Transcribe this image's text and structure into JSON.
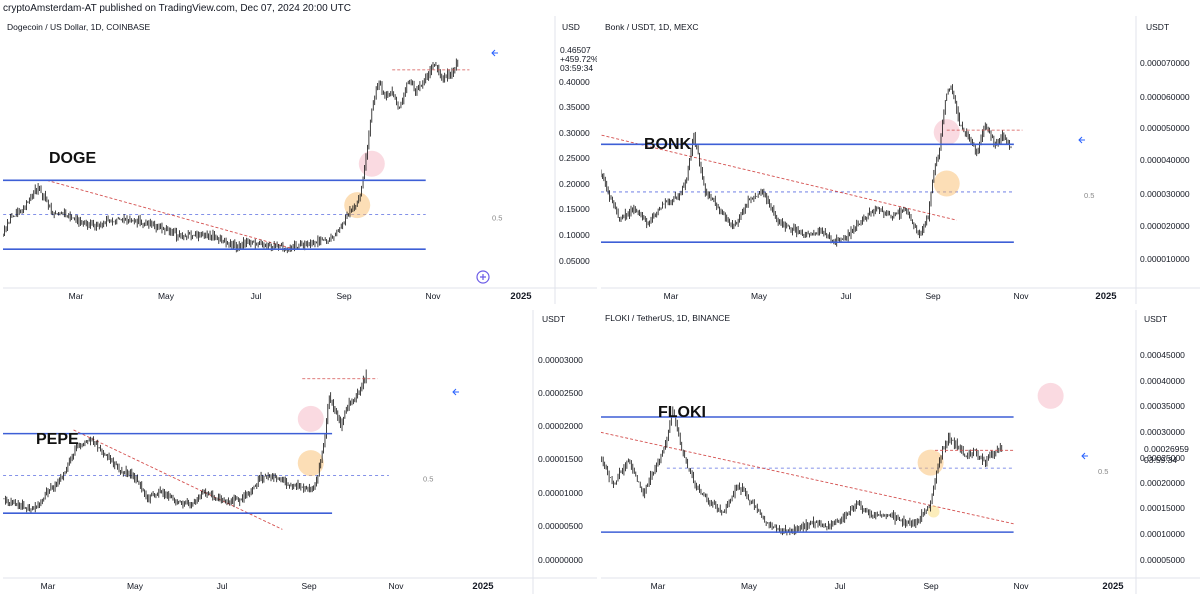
{
  "header": {
    "text": "cryptoAmsterdam-AT published on TradingView.com, Dec 07, 2024 20:00 UTC"
  },
  "chart_data": [
    {
      "type": "line",
      "symbol": "Dogecoin / US Dollar, 1D, COINBASE",
      "label": "DOGE",
      "currency": "USD",
      "x_labels": [
        "Mar",
        "May",
        "Jul",
        "Sep",
        "Nov",
        "2025"
      ],
      "y_ticks": [
        "0.40000",
        "0.35000",
        "0.30000",
        "0.25000",
        "0.20000",
        "0.15000",
        "0.10000",
        "0.05000"
      ],
      "current": [
        "0.46507",
        "+459.72%",
        "03:59:34"
      ],
      "fib_label": "0.5",
      "ylim": [
        0.02,
        0.53
      ],
      "start_day": -60,
      "end_day": 340,
      "x": [
        -60,
        -20,
        0,
        4,
        14,
        24,
        34,
        44,
        54,
        64,
        74,
        84,
        94,
        104,
        114,
        124,
        134,
        144,
        154,
        162,
        170,
        180,
        190,
        200,
        205,
        210,
        220,
        228,
        236,
        242,
        248,
        252,
        256,
        260,
        264,
        268,
        272,
        276,
        282,
        288,
        294,
        300,
        306,
        312,
        318,
        322
      ],
      "values": [
        0.0835,
        0.0835,
        0.0835,
        0.09,
        0.15,
        0.175,
        0.215,
        0.165,
        0.16,
        0.145,
        0.14,
        0.153,
        0.15,
        0.15,
        0.138,
        0.13,
        0.12,
        0.122,
        0.12,
        0.11,
        0.1,
        0.11,
        0.105,
        0.1,
        0.092,
        0.1,
        0.105,
        0.11,
        0.118,
        0.14,
        0.168,
        0.18,
        0.21,
        0.3,
        0.38,
        0.42,
        0.385,
        0.4,
        0.37,
        0.42,
        0.4,
        0.425,
        0.45,
        0.42,
        0.44,
        0.455
      ],
      "resistance": 0.228,
      "support": 0.095,
      "fib": 0.162,
      "fib_dash_from": -60,
      "trend": [
        [
          40,
          0.228
        ],
        [
          210,
          0.095
        ]
      ],
      "circles": [
        {
          "x": 263,
          "y": 0.26,
          "color": "pink"
        },
        {
          "x": 253,
          "y": 0.18,
          "color": "orange"
        }
      ]
    },
    {
      "type": "line",
      "symbol": "Bonk / USDT, 1D, MEXC",
      "label": "BONK",
      "currency": "USDT",
      "x_labels": [
        "Mar",
        "May",
        "Jul",
        "Sep",
        "Nov",
        "2025"
      ],
      "y_ticks": [
        "0.000070000",
        "0.000060000",
        "0.000050000",
        "0.000040000",
        "0.000030000",
        "0.000020000",
        "0.000010000"
      ],
      "fib_label": "0.5",
      "ylim": [
        3.5e-06,
        7.55e-05
      ],
      "start_day": -60,
      "end_day": 340,
      "x": [
        -60,
        -30,
        -10,
        0,
        4,
        8,
        14,
        24,
        34,
        44,
        54,
        64,
        70,
        76,
        84,
        94,
        104,
        114,
        124,
        134,
        144,
        154,
        164,
        174,
        184,
        194,
        204,
        214,
        224,
        234,
        240,
        244,
        248,
        252,
        256,
        262,
        268,
        274,
        280,
        286,
        292,
        298
      ],
      "values": [
        1.1e-05,
        9.5e-06,
        1.2e-05,
        1.6e-05,
        2.2e-05,
        3.8e-05,
        3.2e-05,
        2.2e-05,
        2.5e-05,
        2.1e-05,
        2.6e-05,
        2.8e-05,
        3.2e-05,
        4.5e-05,
        3e-05,
        2.5e-05,
        2e-05,
        2.7e-05,
        3e-05,
        2.2e-05,
        2e-05,
        1.8e-05,
        1.9e-05,
        1.6e-05,
        1.8e-05,
        2.2e-05,
        2.5e-05,
        2.3e-05,
        2.5e-05,
        1.8e-05,
        2.3e-05,
        3.5e-05,
        4.2e-05,
        5.5e-05,
        5.9e-05,
        4.8e-05,
        4.5e-05,
        4e-05,
        4.8e-05,
        4.3e-05,
        4.5e-05,
        4.2e-05
      ],
      "resistance": 4.27e-05,
      "support": 1.6e-05,
      "fib": 2.97e-05,
      "fib_dash_from": -10,
      "trend": [
        [
          8,
          4.55e-05
        ],
        [
          260,
          2.2e-05
        ]
      ],
      "circles": [
        {
          "x": 253,
          "y": 4.6e-05,
          "color": "pink"
        },
        {
          "x": 253,
          "y": 3.2e-05,
          "color": "orange"
        }
      ]
    },
    {
      "type": "line",
      "symbol": "",
      "label": "PEPE",
      "currency": "USDT",
      "x_labels": [
        "Mar",
        "May",
        "Jul",
        "Sep",
        "Nov",
        "2025"
      ],
      "y_ticks": [
        "0.00003000",
        "0.00002500",
        "0.00002000",
        "0.00001500",
        "0.00001000",
        "0.00000500",
        "0.00000000"
      ],
      "fib_label": "0.5",
      "ylim": [
        -2.8e-06,
        3.25e-05
      ],
      "start_day": -60,
      "end_day": 340,
      "x": [
        -60,
        -40,
        -20,
        -10,
        0,
        4,
        10,
        20,
        30,
        40,
        50,
        60,
        70,
        80,
        90,
        100,
        110,
        120,
        130,
        140,
        150,
        160,
        170,
        180,
        190,
        200,
        210,
        220,
        230,
        240,
        246,
        250,
        254,
        258,
        262,
        266,
        272,
        278,
        284
      ],
      "values": [
        5.5e-07,
        8e-07,
        1.5e-06,
        2e-06,
        4e-06,
        7.5e-06,
        1.1e-05,
        8e-06,
        8e-06,
        7e-06,
        6.5e-06,
        9e-06,
        1.1e-05,
        1.5e-05,
        1.6e-05,
        1.4e-05,
        1.2e-05,
        1.1e-05,
        8e-06,
        9e-06,
        7.5e-06,
        7e-06,
        9e-06,
        7.8e-06,
        7.5e-06,
        8.5e-06,
        1.1e-05,
        1.1e-05,
        1e-05,
        9.5e-06,
        9e-06,
        1.1e-05,
        1.5e-05,
        2.2e-05,
        2e-05,
        1.8e-05,
        2.1e-05,
        2.2e-05,
        2.5e-05
      ],
      "resistance": 1.68e-05,
      "support": 6e-06,
      "fib": 1.11e-05,
      "fib_dash_from": -35,
      "trend": [
        [
          78,
          1.73e-05
        ],
        [
          225,
          3.8e-06
        ]
      ],
      "circles": [
        {
          "x": 245,
          "y": 1.88e-05,
          "color": "pink"
        },
        {
          "x": 245,
          "y": 1.28e-05,
          "color": "orange"
        }
      ]
    },
    {
      "type": "line",
      "symbol": "FLOKI / TetherUS, 1D, BINANCE",
      "label": "FLOKI",
      "currency": "USDT",
      "x_labels": [
        "Mar",
        "May",
        "Jul",
        "Sep",
        "Nov",
        "2025"
      ],
      "y_ticks": [
        "0.00045000",
        "0.00040000",
        "0.00035000",
        "0.00030000",
        "0.00025000",
        "0.00020000",
        "0.00015000",
        "0.00010000",
        "0.00005000"
      ],
      "current": [
        "0.00026959",
        "03:59:34"
      ],
      "fib_label": "0.5",
      "ylim": [
        2.75e-05,
        0.000495
      ],
      "start_day": -60,
      "end_day": 340,
      "x": [
        -60,
        -40,
        -20,
        -10,
        0,
        4,
        8,
        12,
        16,
        20,
        30,
        40,
        50,
        60,
        64,
        70,
        76,
        84,
        94,
        104,
        114,
        124,
        134,
        144,
        154,
        164,
        174,
        184,
        194,
        204,
        214,
        224,
        234,
        240,
        244,
        248,
        252,
        256,
        262,
        268,
        274,
        280,
        286,
        292
      ],
      "values": [
        3.5e-05,
        4e-05,
        5e-05,
        6.5e-05,
        0.0001,
        0.00015,
        0.00022,
        0.0003,
        0.00028,
        0.00025,
        0.000195,
        0.00024,
        0.00018,
        0.000235,
        0.00026,
        0.00033,
        0.00026,
        0.0002,
        0.000165,
        0.000145,
        0.000195,
        0.00016,
        0.000125,
        0.00011,
        0.000115,
        0.000125,
        0.00012,
        0.000135,
        0.00016,
        0.00014,
        0.00014,
        0.00013,
        0.000125,
        0.000145,
        0.00016,
        0.00022,
        0.00026,
        0.00028,
        0.000265,
        0.000245,
        0.000255,
        0.000235,
        0.00025,
        0.000265
      ],
      "resistance": 0.000317,
      "support": 0.00011,
      "fib": 0.000225,
      "fib_dash_from": 66,
      "trend": [
        [
          -5,
          0.000305
        ],
        [
          300,
          0.000125
        ]
      ],
      "circles": [
        {
          "x": 244,
          "y": 0.000235,
          "color": "orange"
        },
        {
          "x": 325,
          "y": 0.000355,
          "color": "pink"
        },
        {
          "x": 246,
          "y": 0.000147,
          "color": "yellow"
        }
      ]
    }
  ]
}
